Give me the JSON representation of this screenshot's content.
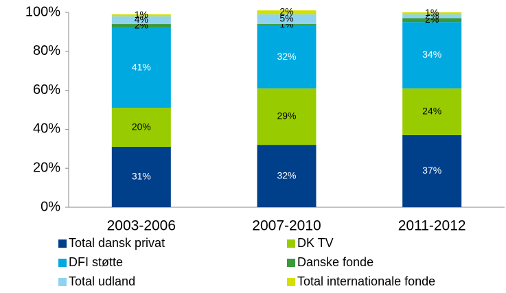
{
  "chart_data": {
    "type": "stacked_bar",
    "categories": [
      "2003-2006",
      "2007-2010",
      "2011-2012"
    ],
    "series": [
      {
        "name": "Total dansk privat",
        "color": "#003f8a",
        "values": [
          31,
          32,
          37
        ],
        "value_labels": [
          "31%",
          "32%",
          "37%"
        ]
      },
      {
        "name": "DK TV",
        "color": "#99cc00",
        "values": [
          20,
          29,
          24
        ],
        "value_labels": [
          "20%",
          "29%",
          "24%"
        ]
      },
      {
        "name": "DFI støtte",
        "color": "#00a9e0",
        "values": [
          41,
          32,
          34
        ],
        "value_labels": [
          "41%",
          "32%",
          "34%"
        ]
      },
      {
        "name": "Danske fonde",
        "color": "#3a9a3a",
        "values": [
          2,
          1,
          2
        ],
        "value_labels": [
          "2%",
          "1%",
          "2%"
        ]
      },
      {
        "name": "Total udland",
        "color": "#8fd3f0",
        "values": [
          4,
          5,
          2
        ],
        "value_labels": [
          "4%",
          "5%",
          "2%"
        ]
      },
      {
        "name": "Total internationale fonde",
        "color": "#d4e000",
        "values": [
          1,
          2,
          1
        ],
        "value_labels": [
          "1%",
          "2%",
          "1%"
        ]
      }
    ],
    "ylim": [
      0,
      100
    ],
    "yticks": [
      {
        "value": 0,
        "label": "0%"
      },
      {
        "value": 20,
        "label": "20%"
      },
      {
        "value": 40,
        "label": "40%"
      },
      {
        "value": 60,
        "label": "60%"
      },
      {
        "value": 80,
        "label": "80%"
      },
      {
        "value": 100,
        "label": "100%"
      }
    ],
    "grid": false
  }
}
